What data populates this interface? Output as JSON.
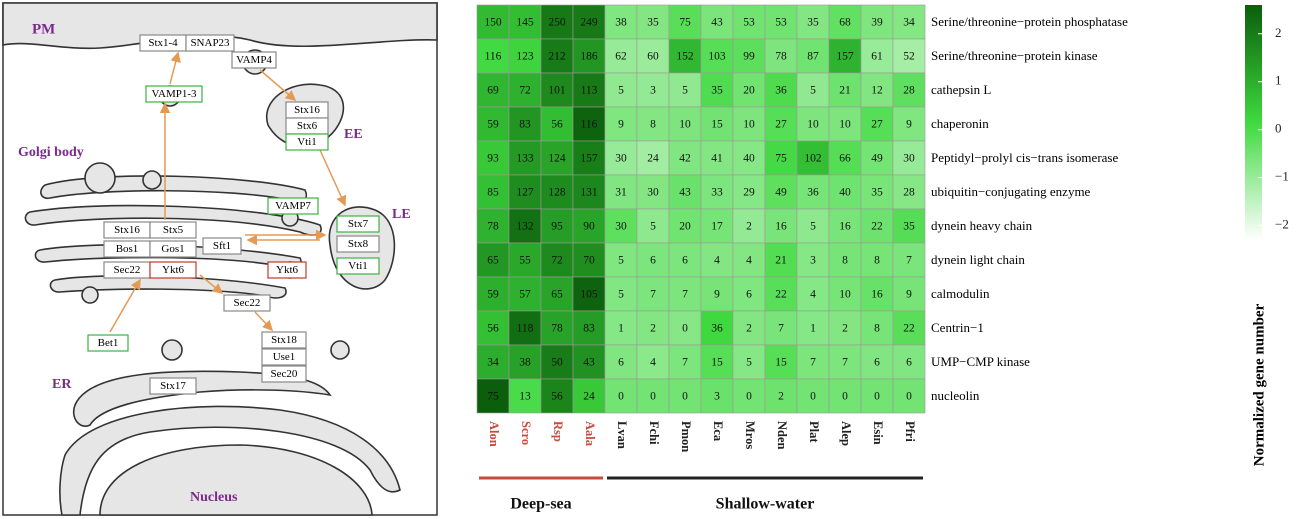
{
  "diagram": {
    "organelles": [
      "PM",
      "Golgi body",
      "EE",
      "LE",
      "ER",
      "Nucleus"
    ],
    "boxes": [
      {
        "text": "Stx1-4",
        "color": "#888888"
      },
      {
        "text": "SNAP23",
        "color": "#888888"
      },
      {
        "text": "VAMP4",
        "color": "#888888"
      },
      {
        "text": "VAMP1-3",
        "color": "#3cb043"
      },
      {
        "text": "Stx16",
        "color": "#888888"
      },
      {
        "text": "Stx6",
        "color": "#888888"
      },
      {
        "text": "Vti1",
        "color": "#3cb043"
      },
      {
        "text": "VAMP7",
        "color": "#3cb043"
      },
      {
        "text": "Stx7",
        "color": "#3cb043"
      },
      {
        "text": "Stx8",
        "color": "#888888"
      },
      {
        "text": "Vti1",
        "color": "#3cb043"
      },
      {
        "text": "Stx16",
        "color": "#888888"
      },
      {
        "text": "Stx5",
        "color": "#888888"
      },
      {
        "text": "Bos1",
        "color": "#888888"
      },
      {
        "text": "Gos1",
        "color": "#888888"
      },
      {
        "text": "Sft1",
        "color": "#888888"
      },
      {
        "text": "Sec22",
        "color": "#888888"
      },
      {
        "text": "Ykt6",
        "color": "#c0392b"
      },
      {
        "text": "Ykt6",
        "color": "#c0392b"
      },
      {
        "text": "Sec22",
        "color": "#888888"
      },
      {
        "text": "Bet1",
        "color": "#3cb043"
      },
      {
        "text": "Stx18",
        "color": "#888888"
      },
      {
        "text": "Use1",
        "color": "#888888"
      },
      {
        "text": "Sec20",
        "color": "#888888"
      },
      {
        "text": "Stx17",
        "color": "#888888"
      }
    ]
  },
  "chart_data": {
    "type": "heatmap",
    "rows": [
      "Serine/threonine−protein phosphatase",
      "Serine/threonine−protein kinase",
      "cathepsin L",
      "chaperonin",
      "Peptidyl−prolyl cis−trans isomerase",
      "ubiquitin−conjugating enzyme",
      "dynein heavy chain",
      "dynein light chain",
      "calmodulin",
      "Centrin−1",
      "UMP−CMP kinase",
      "nucleolin"
    ],
    "columns": [
      "Alon",
      "Scro",
      "Rsp",
      "Aala",
      "Lvan",
      "Fchi",
      "Pmon",
      "Eca",
      "Mros",
      "Nden",
      "Plat",
      "Alep",
      "Esin",
      "Pfri"
    ],
    "values": [
      [
        150,
        145,
        250,
        249,
        38,
        35,
        75,
        43,
        53,
        53,
        35,
        68,
        39,
        34
      ],
      [
        116,
        123,
        212,
        186,
        62,
        60,
        152,
        103,
        99,
        78,
        87,
        157,
        61,
        52
      ],
      [
        69,
        72,
        101,
        113,
        5,
        3,
        5,
        35,
        20,
        36,
        5,
        21,
        12,
        28
      ],
      [
        59,
        83,
        56,
        116,
        9,
        8,
        10,
        15,
        10,
        27,
        10,
        10,
        27,
        9
      ],
      [
        93,
        133,
        124,
        157,
        30,
        24,
        42,
        41,
        40,
        75,
        102,
        66,
        49,
        30
      ],
      [
        85,
        127,
        128,
        131,
        31,
        30,
        43,
        33,
        29,
        49,
        36,
        40,
        35,
        28
      ],
      [
        78,
        132,
        95,
        90,
        30,
        5,
        20,
        17,
        2,
        16,
        5,
        16,
        22,
        35
      ],
      [
        65,
        55,
        72,
        70,
        5,
        6,
        6,
        4,
        4,
        21,
        3,
        8,
        8,
        7
      ],
      [
        59,
        57,
        65,
        105,
        5,
        7,
        7,
        9,
        6,
        22,
        4,
        10,
        16,
        9
      ],
      [
        56,
        118,
        78,
        83,
        1,
        2,
        0,
        36,
        2,
        7,
        1,
        2,
        8,
        22
      ],
      [
        34,
        38,
        50,
        43,
        6,
        4,
        7,
        15,
        5,
        15,
        7,
        7,
        6,
        6
      ],
      [
        75,
        13,
        56,
        24,
        0,
        0,
        0,
        3,
        0,
        2,
        0,
        0,
        0,
        0
      ]
    ],
    "groups": [
      {
        "name": "Deep-sea",
        "color": "#c84b3c",
        "members": [
          "Alon",
          "Scro",
          "Rsp",
          "Aala"
        ]
      },
      {
        "name": "Shallow-water",
        "color": "#222222",
        "members": [
          "Lvan",
          "Fchi",
          "Pmon",
          "Eca",
          "Mros",
          "Nden",
          "Plat",
          "Alep",
          "Esin",
          "Pfri"
        ]
      }
    ],
    "colorbar_label": "Normalized gene number",
    "clim": [
      -2.3,
      2.6
    ],
    "cticks": [
      2,
      1,
      0,
      {
        "value": -1,
        "label": "−1"
      },
      {
        "value": -2,
        "label": "−2"
      }
    ],
    "colors": [
      "#ffffff",
      "#3fd93f",
      "#0b5e0b"
    ]
  }
}
